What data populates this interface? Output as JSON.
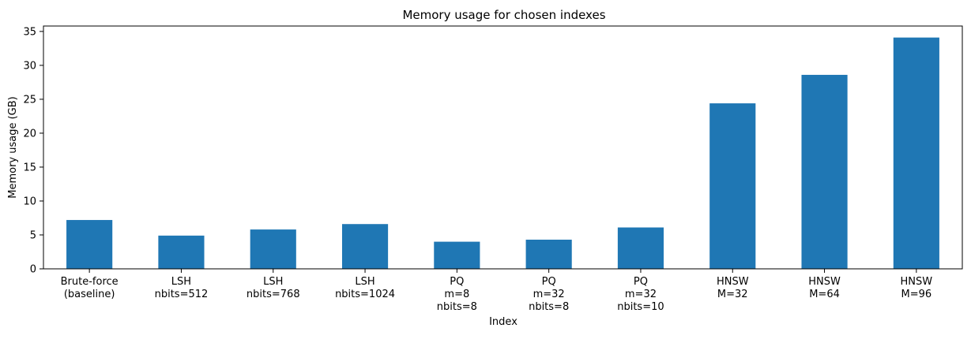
{
  "chart_data": {
    "type": "bar",
    "title": "Memory usage for chosen indexes",
    "xlabel": "Index",
    "ylabel": "Memory usage (GB)",
    "ylim": [
      0,
      35.8
    ],
    "yticks": [
      0,
      5,
      10,
      15,
      20,
      25,
      30,
      35
    ],
    "grid": false,
    "legend": "none",
    "bar_color": "#1f77b4",
    "categories": [
      [
        "Brute-force",
        "(baseline)"
      ],
      [
        "LSH",
        "nbits=512"
      ],
      [
        "LSH",
        "nbits=768"
      ],
      [
        "LSH",
        "nbits=1024"
      ],
      [
        "PQ",
        "m=8",
        "nbits=8"
      ],
      [
        "PQ",
        "m=32",
        "nbits=8"
      ],
      [
        "PQ",
        "m=32",
        "nbits=10"
      ],
      [
        "HNSW",
        "M=32"
      ],
      [
        "HNSW",
        "M=64"
      ],
      [
        "HNSW",
        "M=96"
      ]
    ],
    "values": [
      7.2,
      4.9,
      5.8,
      6.6,
      4.0,
      4.3,
      6.1,
      24.4,
      28.6,
      34.1
    ]
  }
}
